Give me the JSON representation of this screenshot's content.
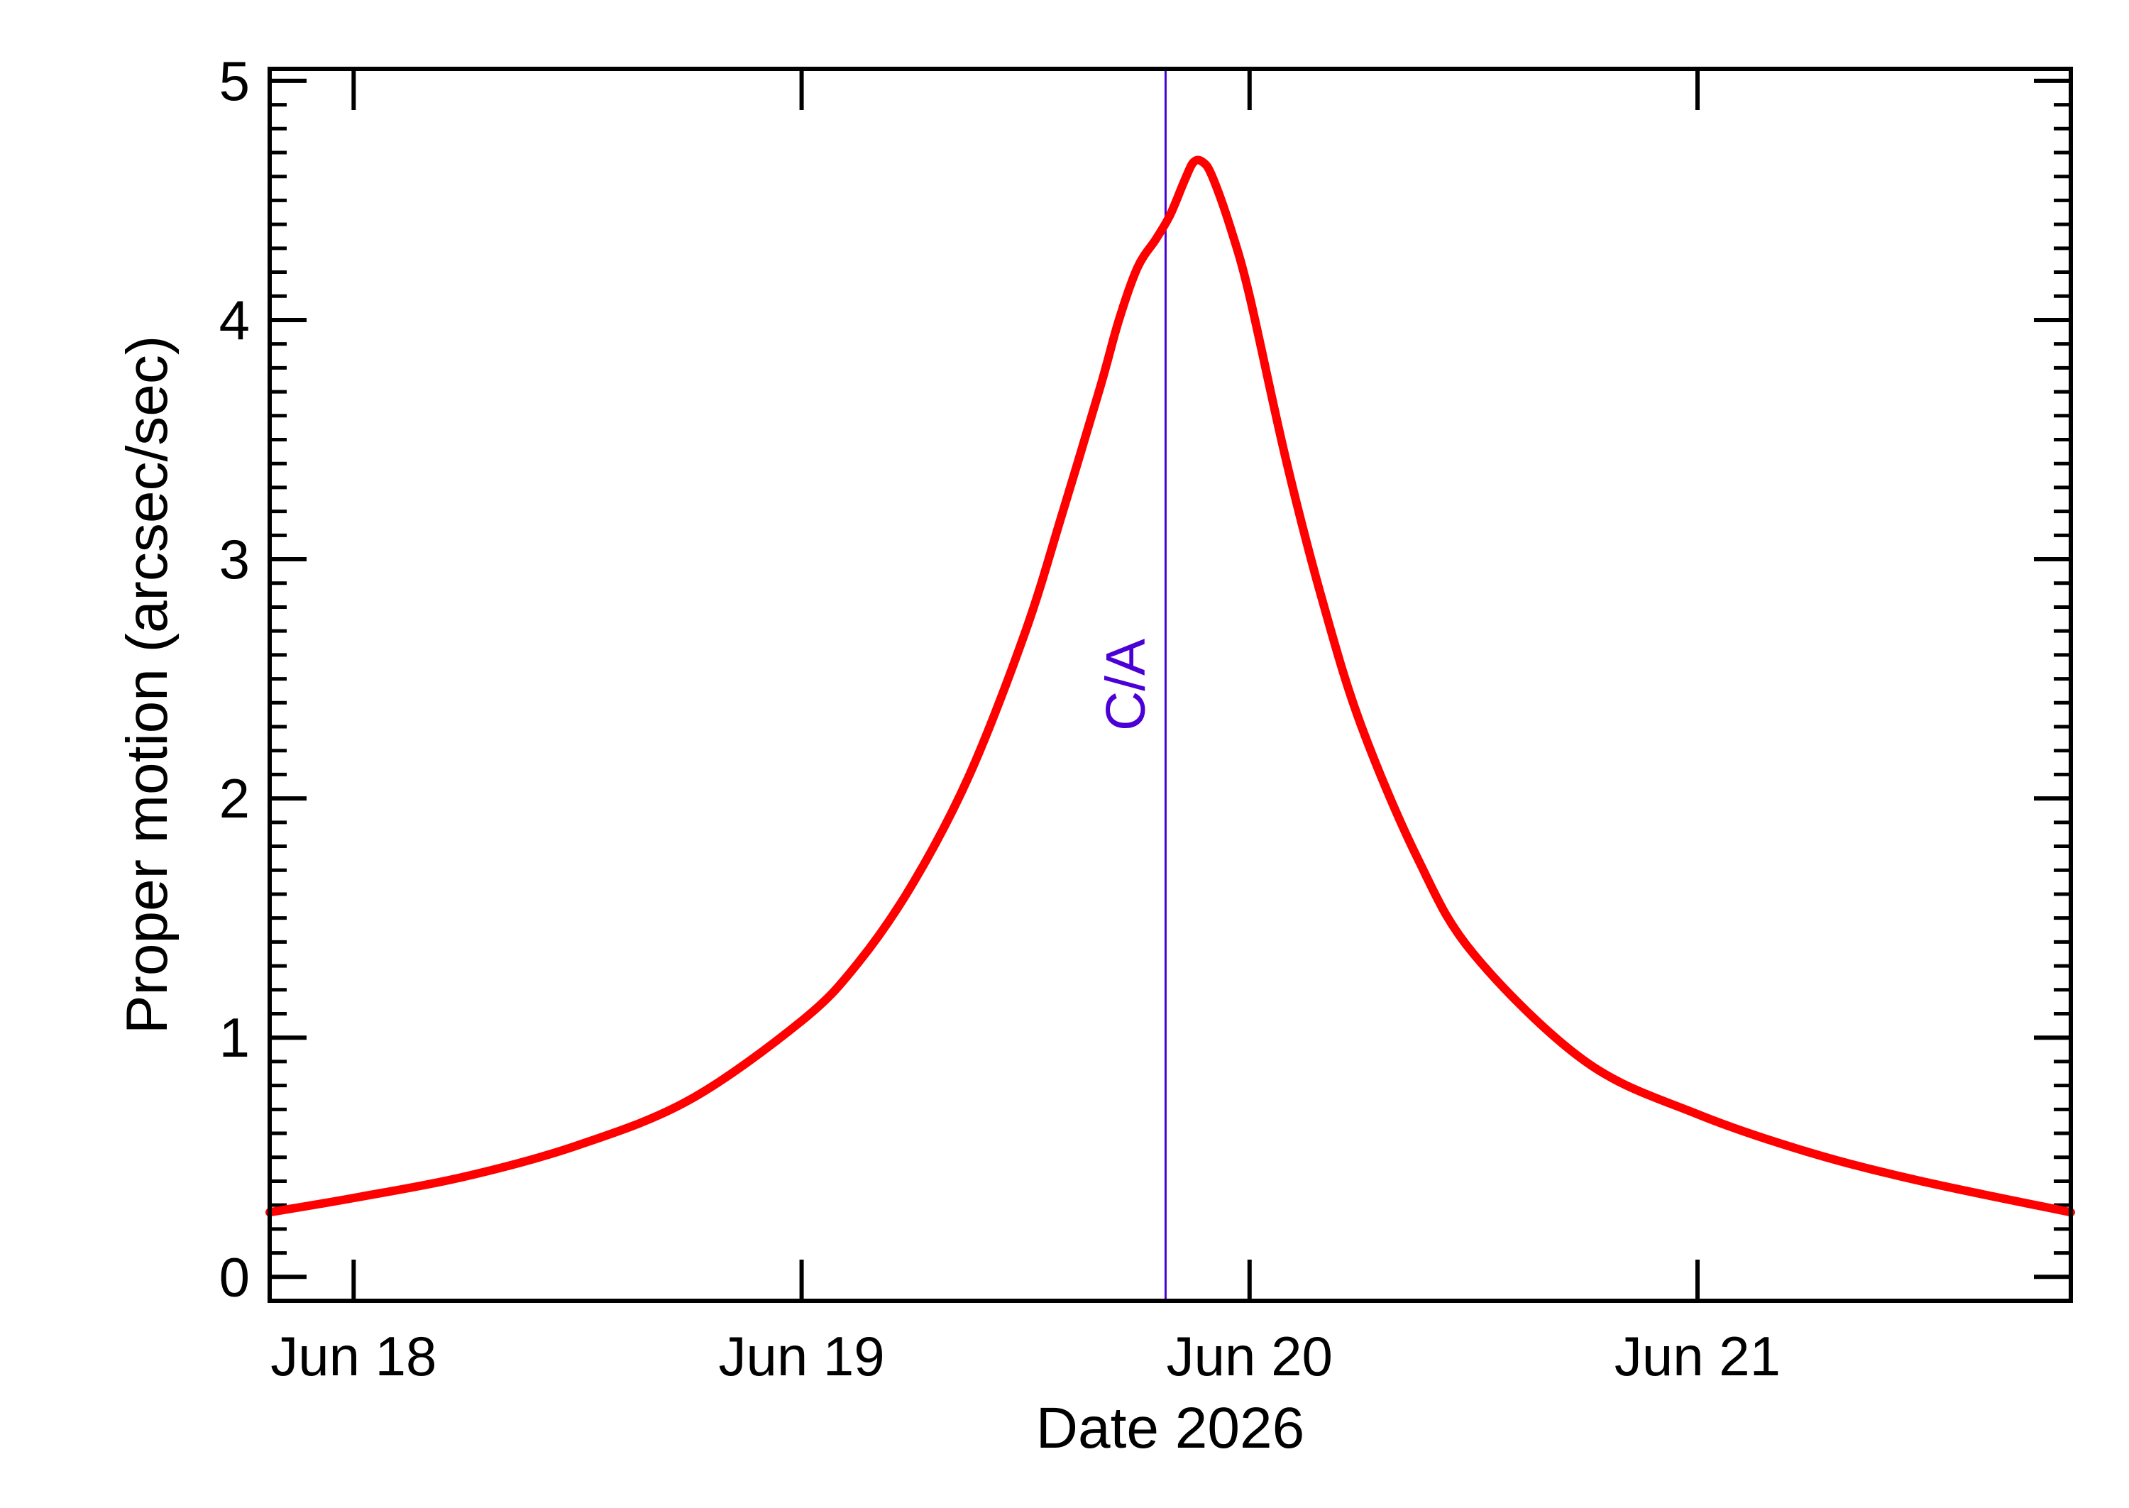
{
  "chart_data": {
    "type": "line",
    "xlabel": "Date 2026",
    "ylabel": "Proper motion (arcsec/sec)",
    "x_tick_labels": [
      "Jun 18",
      "Jun 19",
      "Jun 20",
      "Jun 21"
    ],
    "x_tick_dates": [
      "2026-06-18",
      "2026-06-19",
      "2026-06-20",
      "2026-06-21"
    ],
    "xlim": [
      "2026-06-17 19:30",
      "2026-06-21 20:00"
    ],
    "y_tick_labels": [
      "0",
      "1",
      "2",
      "3",
      "4",
      "5"
    ],
    "y_tick_values": [
      0,
      1,
      2,
      3,
      4,
      5
    ],
    "ylim": [
      -0.1,
      5.05
    ],
    "grid": false,
    "series": [
      {
        "color": "#ff0000",
        "points": [
          [
            "2026-06-17 19:30",
            0.27
          ],
          [
            "2026-06-18 00:00",
            0.33
          ],
          [
            "2026-06-18 06:00",
            0.42
          ],
          [
            "2026-06-18 12:00",
            0.55
          ],
          [
            "2026-06-18 18:00",
            0.74
          ],
          [
            "2026-06-19 00:00",
            1.07
          ],
          [
            "2026-06-19 03:00",
            1.31
          ],
          [
            "2026-06-19 06:00",
            1.65
          ],
          [
            "2026-06-19 09:00",
            2.1
          ],
          [
            "2026-06-19 12:00",
            2.7
          ],
          [
            "2026-06-19 14:00",
            3.2
          ],
          [
            "2026-06-19 16:00",
            3.72
          ],
          [
            "2026-06-19 17:00",
            4.0
          ],
          [
            "2026-06-19 18:00",
            4.22
          ],
          [
            "2026-06-19 19:00",
            4.34
          ],
          [
            "2026-06-19 19:45",
            4.44
          ],
          [
            "2026-06-19 20:30",
            4.58
          ],
          [
            "2026-06-19 21:00",
            4.66
          ],
          [
            "2026-06-19 21:30",
            4.66
          ],
          [
            "2026-06-19 22:00",
            4.6
          ],
          [
            "2026-06-19 23:00",
            4.38
          ],
          [
            "2026-06-20 00:00",
            4.1
          ],
          [
            "2026-06-20 02:00",
            3.4
          ],
          [
            "2026-06-20 04:00",
            2.8
          ],
          [
            "2026-06-20 06:00",
            2.3
          ],
          [
            "2026-06-20 09:00",
            1.75
          ],
          [
            "2026-06-20 12:00",
            1.35
          ],
          [
            "2026-06-20 18:00",
            0.9
          ],
          [
            "2026-06-21 00:00",
            0.68
          ],
          [
            "2026-06-21 06:00",
            0.52
          ],
          [
            "2026-06-21 12:00",
            0.4
          ],
          [
            "2026-06-21 20:00",
            0.27
          ]
        ]
      }
    ],
    "annotations": [
      {
        "text": "C/A",
        "x": "2026-06-19 19:30",
        "color": "#4b00d6",
        "orientation": "vertical line"
      }
    ]
  }
}
